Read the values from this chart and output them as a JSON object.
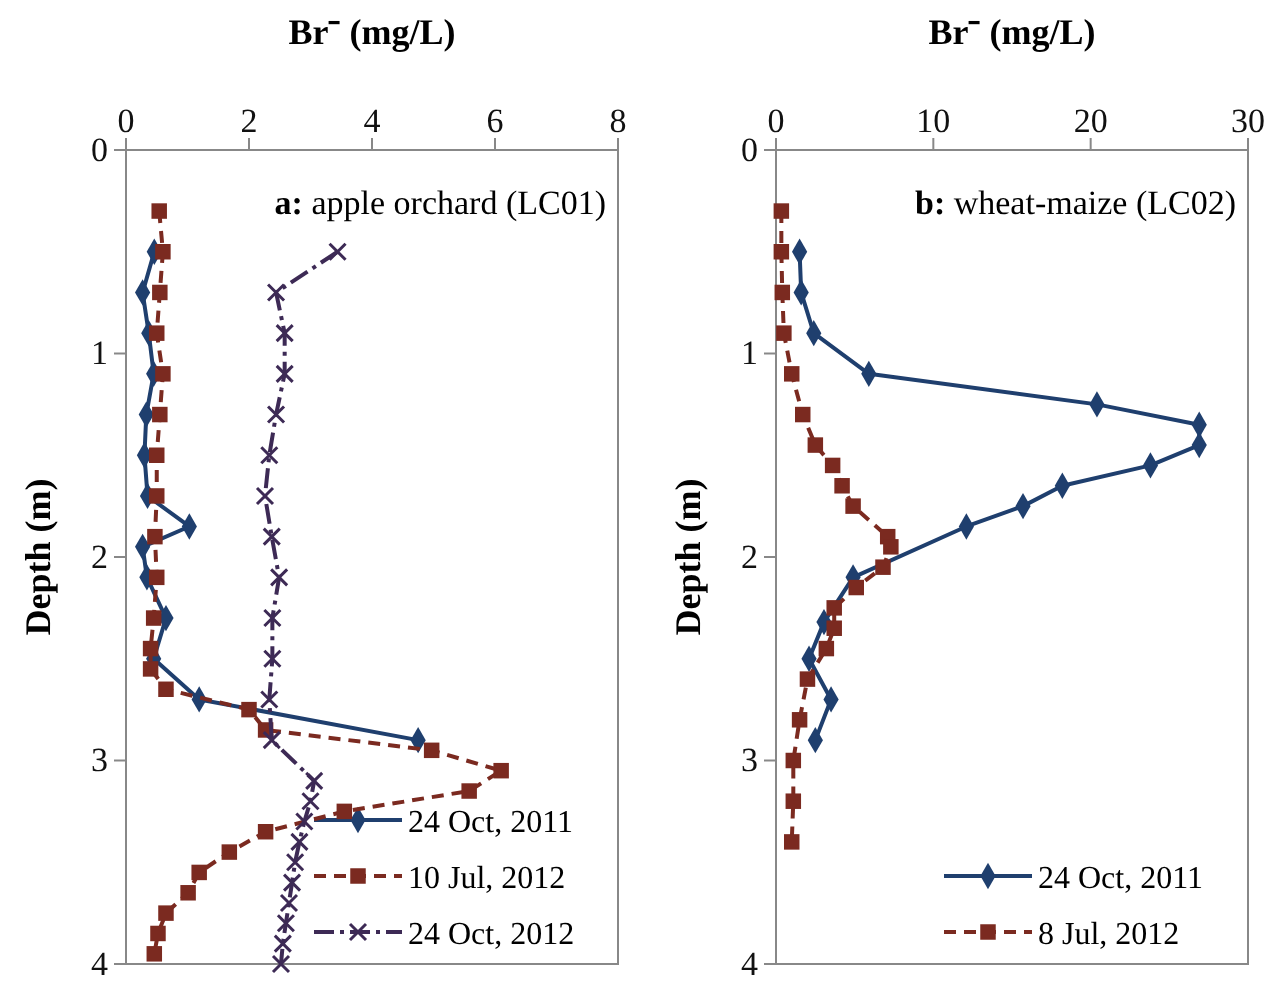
{
  "chart_data": [
    {
      "type": "line",
      "xlabel": "Br⁻ (mg/L)",
      "ylabel": "Depth (m)",
      "xlim": [
        0,
        8
      ],
      "xticks": [
        0,
        2,
        4,
        6,
        8
      ],
      "ylim": [
        4,
        0
      ],
      "yticks": [
        0,
        1,
        2,
        3,
        4
      ],
      "legend": "bottom right",
      "grid": false,
      "annotations": [
        "a: apple orchard (LC01)"
      ],
      "series": [
        {
          "name": "24 Oct, 2011",
          "color": "#1f3f6e",
          "marker": "diamond",
          "line_style": "solid",
          "x": [
            0.46,
            0.27,
            0.37,
            0.45,
            0.33,
            0.3,
            0.35,
            1.03,
            0.27,
            0.34,
            0.65,
            0.45,
            1.19,
            4.75
          ],
          "values": [
            0.5,
            0.7,
            0.9,
            1.1,
            1.3,
            1.5,
            1.7,
            1.85,
            1.95,
            2.1,
            2.3,
            2.5,
            2.7,
            2.9
          ]
        },
        {
          "name": "10 Jul, 2012",
          "color": "#7b2a20",
          "marker": "square",
          "line_style": "dashed",
          "x": [
            0.54,
            0.6,
            0.55,
            0.5,
            0.6,
            0.55,
            0.5,
            0.5,
            0.47,
            0.5,
            0.45,
            0.4,
            0.4,
            0.65,
            2.0,
            2.27,
            4.97,
            6.1,
            5.58,
            3.55,
            2.27,
            1.68,
            1.19,
            1.01,
            0.65,
            0.52,
            0.46
          ],
          "values": [
            0.3,
            0.5,
            0.7,
            0.9,
            1.1,
            1.3,
            1.5,
            1.7,
            1.9,
            2.1,
            2.3,
            2.45,
            2.55,
            2.65,
            2.75,
            2.85,
            2.95,
            3.05,
            3.15,
            3.25,
            3.35,
            3.45,
            3.55,
            3.65,
            3.75,
            3.85,
            3.95
          ]
        },
        {
          "name": "24 Oct, 2012",
          "color": "#3d2a55",
          "marker": "cross",
          "line_style": "dashdot",
          "x": [
            3.44,
            2.44,
            2.58,
            2.58,
            2.44,
            2.33,
            2.26,
            2.37,
            2.49,
            2.38,
            2.38,
            2.33,
            2.37,
            3.06,
            3.0,
            2.9,
            2.82,
            2.75,
            2.7,
            2.65,
            2.6,
            2.55,
            2.52
          ],
          "values": [
            0.5,
            0.7,
            0.9,
            1.1,
            1.3,
            1.5,
            1.7,
            1.9,
            2.1,
            2.3,
            2.5,
            2.7,
            2.9,
            3.1,
            3.2,
            3.3,
            3.4,
            3.5,
            3.6,
            3.7,
            3.8,
            3.9,
            4.0
          ]
        }
      ]
    },
    {
      "type": "line",
      "xlabel": "Br⁻ (mg/L)",
      "ylabel": "Depth (m)",
      "xlim": [
        0,
        30
      ],
      "xticks": [
        0,
        10,
        20,
        30
      ],
      "ylim": [
        4,
        0
      ],
      "yticks": [
        0,
        1,
        2,
        3,
        4
      ],
      "legend": "bottom right",
      "grid": false,
      "annotations": [
        "b: wheat-maize (LC02)"
      ],
      "series": [
        {
          "name": "24 Oct, 2011",
          "color": "#1f3f6e",
          "marker": "diamond",
          "line_style": "solid",
          "x": [
            1.5,
            1.6,
            2.4,
            5.9,
            20.4,
            26.9,
            26.9,
            23.8,
            18.2,
            15.7,
            12.1,
            4.9,
            3.05,
            2.1,
            3.5,
            2.5
          ],
          "values": [
            0.5,
            0.7,
            0.9,
            1.1,
            1.25,
            1.35,
            1.45,
            1.55,
            1.65,
            1.75,
            1.85,
            2.1,
            2.32,
            2.5,
            2.7,
            2.9
          ]
        },
        {
          "name": "8 Jul, 2012",
          "color": "#7b2a20",
          "marker": "square",
          "line_style": "dashed",
          "x": [
            0.34,
            0.34,
            0.4,
            0.5,
            1.0,
            1.7,
            2.5,
            3.6,
            4.2,
            4.9,
            7.1,
            7.3,
            6.8,
            5.1,
            3.7,
            3.7,
            3.2,
            2.0,
            1.5,
            1.1,
            1.1,
            1.0
          ],
          "values": [
            0.3,
            0.5,
            0.7,
            0.9,
            1.1,
            1.3,
            1.45,
            1.55,
            1.65,
            1.75,
            1.9,
            1.95,
            2.05,
            2.15,
            2.25,
            2.35,
            2.45,
            2.6,
            2.8,
            3.0,
            3.2,
            3.4
          ]
        }
      ]
    }
  ]
}
